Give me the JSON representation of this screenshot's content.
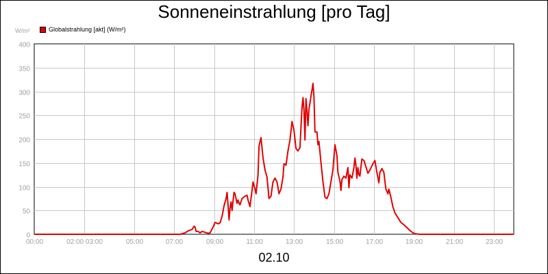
{
  "chart_data": {
    "type": "line",
    "title": "Sonneneinstrahlung [pro Tag]",
    "ylabel": "W/m²",
    "xlabel": "02.10",
    "ylim": [
      0,
      400
    ],
    "xlim": [
      0,
      24
    ],
    "grid": true,
    "legend_position": "top-left",
    "yticks": [
      0,
      50,
      100,
      150,
      200,
      250,
      300,
      350,
      400
    ],
    "xticks": [
      {
        "t": 0,
        "label": "00:00"
      },
      {
        "t": 2.5,
        "label": "02:00 03:00"
      },
      {
        "t": 5,
        "label": "05:00"
      },
      {
        "t": 7,
        "label": "07:00"
      },
      {
        "t": 9,
        "label": "09:00"
      },
      {
        "t": 11,
        "label": "11:00"
      },
      {
        "t": 13,
        "label": "13:00"
      },
      {
        "t": 15,
        "label": "15:00"
      },
      {
        "t": 17,
        "label": "17:00"
      },
      {
        "t": 19,
        "label": "19:00"
      },
      {
        "t": 21,
        "label": "21:00"
      },
      {
        "t": 23,
        "label": "23:00"
      }
    ],
    "series": [
      {
        "name": "Globalstrahlung [akt] (W/m²)",
        "color": "#e00000",
        "points": [
          [
            0,
            0
          ],
          [
            7.3,
            0
          ],
          [
            7.55,
            3
          ],
          [
            7.75,
            8
          ],
          [
            7.9,
            10
          ],
          [
            8.0,
            17
          ],
          [
            8.05,
            15
          ],
          [
            8.1,
            6
          ],
          [
            8.2,
            6
          ],
          [
            8.3,
            3
          ],
          [
            8.4,
            6
          ],
          [
            8.55,
            4
          ],
          [
            8.7,
            2
          ],
          [
            8.8,
            3
          ],
          [
            8.95,
            15
          ],
          [
            9.05,
            25
          ],
          [
            9.2,
            22
          ],
          [
            9.3,
            24
          ],
          [
            9.4,
            38
          ],
          [
            9.5,
            60
          ],
          [
            9.6,
            75
          ],
          [
            9.65,
            88
          ],
          [
            9.7,
            62
          ],
          [
            9.75,
            30
          ],
          [
            9.8,
            55
          ],
          [
            9.85,
            68
          ],
          [
            9.9,
            50
          ],
          [
            9.95,
            70
          ],
          [
            10.0,
            88
          ],
          [
            10.05,
            85
          ],
          [
            10.1,
            75
          ],
          [
            10.15,
            65
          ],
          [
            10.2,
            72
          ],
          [
            10.25,
            65
          ],
          [
            10.3,
            62
          ],
          [
            10.4,
            75
          ],
          [
            10.55,
            80
          ],
          [
            10.65,
            82
          ],
          [
            10.7,
            72
          ],
          [
            10.8,
            58
          ],
          [
            10.95,
            110
          ],
          [
            11.05,
            95
          ],
          [
            11.1,
            85
          ],
          [
            11.2,
            125
          ],
          [
            11.25,
            185
          ],
          [
            11.35,
            203
          ],
          [
            11.45,
            160
          ],
          [
            11.55,
            135
          ],
          [
            11.65,
            120
          ],
          [
            11.75,
            75
          ],
          [
            11.85,
            80
          ],
          [
            11.95,
            110
          ],
          [
            12.05,
            118
          ],
          [
            12.15,
            110
          ],
          [
            12.25,
            85
          ],
          [
            12.35,
            95
          ],
          [
            12.45,
            120
          ],
          [
            12.5,
            148
          ],
          [
            12.6,
            145
          ],
          [
            12.7,
            175
          ],
          [
            12.8,
            198
          ],
          [
            12.9,
            237
          ],
          [
            13.0,
            218
          ],
          [
            13.1,
            180
          ],
          [
            13.2,
            175
          ],
          [
            13.3,
            182
          ],
          [
            13.4,
            265
          ],
          [
            13.45,
            287
          ],
          [
            13.5,
            260
          ],
          [
            13.55,
            198
          ],
          [
            13.6,
            285
          ],
          [
            13.65,
            260
          ],
          [
            13.7,
            228
          ],
          [
            13.75,
            262
          ],
          [
            13.85,
            290
          ],
          [
            13.9,
            302
          ],
          [
            13.95,
            317
          ],
          [
            14.0,
            290
          ],
          [
            14.05,
            215
          ],
          [
            14.15,
            215
          ],
          [
            14.2,
            188
          ],
          [
            14.25,
            195
          ],
          [
            14.35,
            152
          ],
          [
            14.45,
            110
          ],
          [
            14.55,
            78
          ],
          [
            14.65,
            75
          ],
          [
            14.75,
            85
          ],
          [
            14.85,
            110
          ],
          [
            14.95,
            135
          ],
          [
            15.0,
            162
          ],
          [
            15.05,
            188
          ],
          [
            15.15,
            165
          ],
          [
            15.2,
            130
          ],
          [
            15.3,
            112
          ],
          [
            15.35,
            92
          ],
          [
            15.4,
            115
          ],
          [
            15.5,
            122
          ],
          [
            15.6,
            118
          ],
          [
            15.7,
            140
          ],
          [
            15.75,
            98
          ],
          [
            15.8,
            125
          ],
          [
            15.9,
            118
          ],
          [
            16.0,
            140
          ],
          [
            16.05,
            160
          ],
          [
            16.1,
            145
          ],
          [
            16.15,
            118
          ],
          [
            16.2,
            140
          ],
          [
            16.25,
            125
          ],
          [
            16.3,
            122
          ],
          [
            16.4,
            158
          ],
          [
            16.5,
            155
          ],
          [
            16.6,
            142
          ],
          [
            16.7,
            128
          ],
          [
            16.8,
            135
          ],
          [
            16.95,
            148
          ],
          [
            17.05,
            155
          ],
          [
            17.15,
            130
          ],
          [
            17.25,
            108
          ],
          [
            17.3,
            130
          ],
          [
            17.4,
            138
          ],
          [
            17.5,
            130
          ],
          [
            17.6,
            95
          ],
          [
            17.7,
            85
          ],
          [
            17.75,
            95
          ],
          [
            17.85,
            78
          ],
          [
            17.95,
            58
          ],
          [
            18.05,
            45
          ],
          [
            18.2,
            35
          ],
          [
            18.35,
            25
          ],
          [
            18.5,
            20
          ],
          [
            18.65,
            14
          ],
          [
            18.8,
            8
          ],
          [
            18.95,
            3
          ],
          [
            19.1,
            1
          ],
          [
            19.3,
            0
          ],
          [
            24,
            0
          ]
        ]
      }
    ]
  }
}
